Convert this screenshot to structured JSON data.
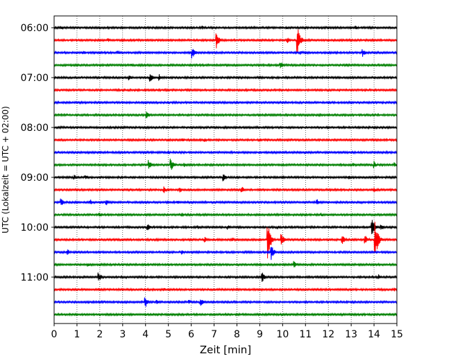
{
  "chart_data": {
    "type": "line",
    "title": "",
    "xlabel": "Zeit  [min]",
    "ylabel": "UTC (Lokalzeit = UTC + 02:00)",
    "xlim": [
      0,
      15
    ],
    "x_ticks": [
      0,
      1,
      2,
      3,
      4,
      5,
      6,
      7,
      8,
      9,
      10,
      11,
      12,
      13,
      14,
      15
    ],
    "x_tick_labels": [
      "0",
      "1",
      "2",
      "3",
      "4",
      "5",
      "6",
      "7",
      "8",
      "9",
      "10",
      "11",
      "12",
      "13",
      "14",
      "15"
    ],
    "y_tick_labels": [
      {
        "label": "06:00",
        "trace_index": 0
      },
      {
        "label": "07:00",
        "trace_index": 4
      },
      {
        "label": "08:00",
        "trace_index": 8
      },
      {
        "label": "09:00",
        "trace_index": 12
      },
      {
        "label": "10:00",
        "trace_index": 16
      },
      {
        "label": "11:00",
        "trace_index": 20
      }
    ],
    "grid": {
      "x": true,
      "style": "dotted"
    },
    "color_cycle": [
      "#000000",
      "#ff0000",
      "#0000ff",
      "#008000"
    ],
    "trace_interval_minutes": 15,
    "start_time": "06:00",
    "series": [
      {
        "name": "06:00",
        "color": "#000000",
        "events": [
          {
            "t": 0.3,
            "amp": 3
          },
          {
            "t": 6.5,
            "amp": 3
          },
          {
            "t": 10.2,
            "amp": 2
          },
          {
            "t": 13.2,
            "amp": 3
          }
        ]
      },
      {
        "name": "06:15",
        "color": "#ff0000",
        "events": [
          {
            "t": 2.4,
            "amp": 3
          },
          {
            "t": 7.1,
            "amp": 12
          },
          {
            "t": 10.2,
            "amp": 5
          },
          {
            "t": 10.65,
            "amp": 20
          }
        ]
      },
      {
        "name": "06:30",
        "color": "#0000ff",
        "events": [
          {
            "t": 1.3,
            "amp": 3
          },
          {
            "t": 2.8,
            "amp": 3
          },
          {
            "t": 6.05,
            "amp": 9
          },
          {
            "t": 10.8,
            "amp": 3
          },
          {
            "t": 13.5,
            "amp": 6
          }
        ]
      },
      {
        "name": "06:45",
        "color": "#008000",
        "events": [
          {
            "t": 3.4,
            "amp": 2
          },
          {
            "t": 9.9,
            "amp": 6
          },
          {
            "t": 12.8,
            "amp": 2
          }
        ]
      },
      {
        "name": "07:00",
        "color": "#000000",
        "events": [
          {
            "t": 3.3,
            "amp": 4
          },
          {
            "t": 4.2,
            "amp": 7
          },
          {
            "t": 4.6,
            "amp": 5
          }
        ]
      },
      {
        "name": "07:15",
        "color": "#ff0000",
        "events": [
          {
            "t": 5.2,
            "amp": 2
          }
        ]
      },
      {
        "name": "07:30",
        "color": "#0000ff",
        "events": [
          {
            "t": 2.2,
            "amp": 1
          }
        ]
      },
      {
        "name": "07:45",
        "color": "#008000",
        "events": [
          {
            "t": 4.05,
            "amp": 6
          }
        ]
      },
      {
        "name": "08:00",
        "color": "#000000",
        "events": []
      },
      {
        "name": "08:15",
        "color": "#ff0000",
        "events": [
          {
            "t": 0.2,
            "amp": 2
          },
          {
            "t": 5.0,
            "amp": 3
          },
          {
            "t": 5.6,
            "amp": 3
          },
          {
            "t": 6.6,
            "amp": 3
          },
          {
            "t": 9.0,
            "amp": 3
          }
        ]
      },
      {
        "name": "08:30",
        "color": "#0000ff",
        "events": [
          {
            "t": 2.0,
            "amp": 2
          },
          {
            "t": 5.0,
            "amp": 3
          }
        ]
      },
      {
        "name": "08:45",
        "color": "#008000",
        "events": [
          {
            "t": 4.15,
            "amp": 8
          },
          {
            "t": 5.1,
            "amp": 10
          },
          {
            "t": 5.7,
            "amp": 4
          },
          {
            "t": 13.1,
            "amp": 3
          },
          {
            "t": 14.0,
            "amp": 6
          },
          {
            "t": 14.9,
            "amp": 4
          }
        ]
      },
      {
        "name": "09:00",
        "color": "#000000",
        "events": [
          {
            "t": 0.9,
            "amp": 4
          },
          {
            "t": 1.4,
            "amp": 3
          },
          {
            "t": 7.4,
            "amp": 6
          },
          {
            "t": 12.9,
            "amp": 3
          }
        ]
      },
      {
        "name": "09:15",
        "color": "#ff0000",
        "events": [
          {
            "t": 4.8,
            "amp": 6
          },
          {
            "t": 5.5,
            "amp": 4
          },
          {
            "t": 8.2,
            "amp": 6
          },
          {
            "t": 14.0,
            "amp": 4
          }
        ]
      },
      {
        "name": "09:30",
        "color": "#0000ff",
        "events": [
          {
            "t": 0.3,
            "amp": 6
          },
          {
            "t": 1.6,
            "amp": 4
          },
          {
            "t": 2.3,
            "amp": 5
          },
          {
            "t": 5.4,
            "amp": 3
          },
          {
            "t": 11.5,
            "amp": 5
          },
          {
            "t": 13.4,
            "amp": 3
          }
        ]
      },
      {
        "name": "09:45",
        "color": "#008000",
        "events": [
          {
            "t": 2.0,
            "amp": 4
          },
          {
            "t": 5.6,
            "amp": 3
          },
          {
            "t": 11.7,
            "amp": 3
          }
        ]
      },
      {
        "name": "10:00",
        "color": "#000000",
        "events": [
          {
            "t": 4.1,
            "amp": 5
          },
          {
            "t": 6.3,
            "amp": 3
          },
          {
            "t": 7.6,
            "amp": 4
          },
          {
            "t": 9.8,
            "amp": 3
          },
          {
            "t": 13.9,
            "amp": 14
          },
          {
            "t": 14.3,
            "amp": 5
          }
        ]
      },
      {
        "name": "10:15",
        "color": "#ff0000",
        "events": [
          {
            "t": 6.6,
            "amp": 4
          },
          {
            "t": 7.8,
            "amp": 4
          },
          {
            "t": 9.35,
            "amp": 28
          },
          {
            "t": 9.95,
            "amp": 10
          },
          {
            "t": 12.6,
            "amp": 8
          },
          {
            "t": 14.05,
            "amp": 30
          },
          {
            "t": 13.6,
            "amp": 8
          }
        ]
      },
      {
        "name": "10:30",
        "color": "#0000ff",
        "events": [
          {
            "t": 0.6,
            "amp": 4
          },
          {
            "t": 5.6,
            "amp": 4
          },
          {
            "t": 9.5,
            "amp": 12
          }
        ]
      },
      {
        "name": "10:45",
        "color": "#008000",
        "events": [
          {
            "t": 1.5,
            "amp": 3
          },
          {
            "t": 10.5,
            "amp": 6
          }
        ]
      },
      {
        "name": "11:00",
        "color": "#000000",
        "events": [
          {
            "t": 1.95,
            "amp": 8
          },
          {
            "t": 9.1,
            "amp": 8
          },
          {
            "t": 14.2,
            "amp": 4
          }
        ]
      },
      {
        "name": "11:15",
        "color": "#ff0000",
        "events": [
          {
            "t": 2.0,
            "amp": 2
          },
          {
            "t": 4.8,
            "amp": 3
          },
          {
            "t": 14.9,
            "amp": 3
          }
        ]
      },
      {
        "name": "11:30",
        "color": "#0000ff",
        "events": [
          {
            "t": 4.0,
            "amp": 8
          },
          {
            "t": 4.5,
            "amp": 5
          },
          {
            "t": 5.9,
            "amp": 4
          },
          {
            "t": 6.4,
            "amp": 7
          }
        ]
      },
      {
        "name": "11:45",
        "color": "#008000",
        "events": [
          {
            "t": 7.6,
            "amp": 2
          }
        ]
      }
    ]
  }
}
